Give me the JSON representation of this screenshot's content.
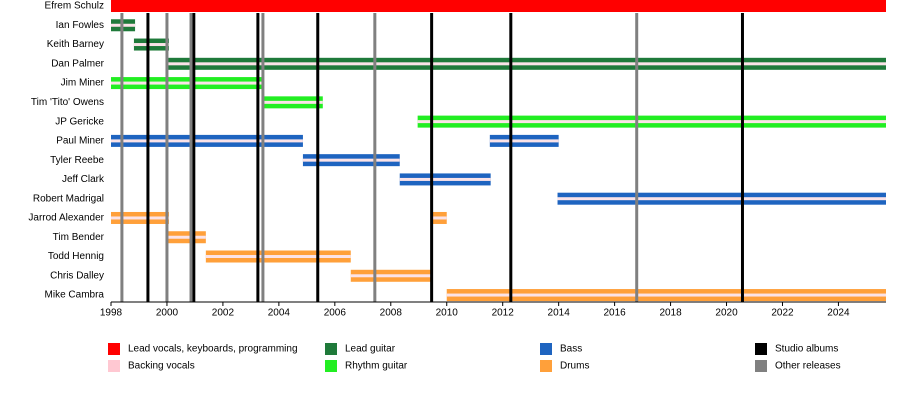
{
  "chart_data": {
    "type": "timeline",
    "xlim": [
      1998,
      2025.7
    ],
    "xticks": [
      1998,
      2000,
      2002,
      2004,
      2006,
      2008,
      2010,
      2012,
      2014,
      2016,
      2018,
      2020,
      2022,
      2024
    ],
    "stripe_color": "#fbe3e8",
    "roles": [
      {
        "name": "Lead vocals, keyboards, programming",
        "color": "#ff0000"
      },
      {
        "name": "Backing vocals",
        "color": "#ffc8d2"
      },
      {
        "name": "Lead guitar",
        "color": "#1f7a3a"
      },
      {
        "name": "Rhythm guitar",
        "color": "#22ee22"
      },
      {
        "name": "Bass",
        "color": "#1e64c0"
      },
      {
        "name": "Drums",
        "color": "#ffa03a"
      }
    ],
    "events": [
      {
        "name": "Studio albums",
        "color": "#000000",
        "dates": [
          1999.32,
          2000.96,
          2003.25,
          2005.39,
          2009.46,
          2012.29,
          2020.57
        ]
      },
      {
        "name": "Other releases",
        "color": "#808080",
        "dates": [
          1998.39,
          2000.0,
          2000.86,
          2003.43,
          2007.43,
          2016.79
        ]
      }
    ],
    "members": [
      {
        "name": "Efrem Schulz",
        "spans": [
          {
            "start": 1998,
            "end": 2025.7,
            "color": "#ff0000",
            "stripe": false
          }
        ]
      },
      {
        "name": "Ian Fowles",
        "spans": [
          {
            "start": 1998,
            "end": 1998.86,
            "color": "#1f7a3a",
            "stripe": true
          }
        ]
      },
      {
        "name": "Keith Barney",
        "spans": [
          {
            "start": 1998.82,
            "end": 2000.07,
            "color": "#1f7a3a",
            "stripe": true
          }
        ]
      },
      {
        "name": "Dan Palmer",
        "spans": [
          {
            "start": 2000.04,
            "end": 2025.7,
            "color": "#1f7a3a",
            "stripe": true
          }
        ]
      },
      {
        "name": "Jim Miner",
        "spans": [
          {
            "start": 1998,
            "end": 2003.39,
            "color": "#22ee22",
            "stripe": true
          }
        ]
      },
      {
        "name": "Tim 'Tito' Owens",
        "spans": [
          {
            "start": 2003.39,
            "end": 2005.57,
            "color": "#22ee22",
            "stripe": true
          }
        ]
      },
      {
        "name": "JP Gericke",
        "spans": [
          {
            "start": 2008.96,
            "end": 2025.7,
            "color": "#22ee22",
            "stripe": true
          }
        ]
      },
      {
        "name": "Paul Miner",
        "spans": [
          {
            "start": 1998,
            "end": 2004.86,
            "color": "#1e64c0",
            "stripe": true
          },
          {
            "start": 2011.54,
            "end": 2014.0,
            "color": "#1e64c0",
            "stripe": true
          }
        ]
      },
      {
        "name": "Tyler Reebe",
        "spans": [
          {
            "start": 2004.86,
            "end": 2008.32,
            "color": "#1e64c0",
            "stripe": true
          }
        ]
      },
      {
        "name": "Jeff Clark",
        "spans": [
          {
            "start": 2008.32,
            "end": 2011.57,
            "color": "#1e64c0",
            "stripe": true
          }
        ]
      },
      {
        "name": "Robert Madrigal",
        "spans": [
          {
            "start": 2013.96,
            "end": 2025.7,
            "color": "#1e64c0",
            "stripe": true
          }
        ]
      },
      {
        "name": "Jarrod Alexander",
        "spans": [
          {
            "start": 1998,
            "end": 2000.07,
            "color": "#ffa03a",
            "stripe": true
          },
          {
            "start": 2009.43,
            "end": 2010.0,
            "color": "#ffa03a",
            "stripe": true
          }
        ]
      },
      {
        "name": "Tim Bender",
        "spans": [
          {
            "start": 2000.04,
            "end": 2001.39,
            "color": "#ffa03a",
            "stripe": true
          }
        ]
      },
      {
        "name": "Todd Hennig",
        "spans": [
          {
            "start": 2001.39,
            "end": 2006.57,
            "color": "#ffa03a",
            "stripe": true
          }
        ]
      },
      {
        "name": "Chris Dalley",
        "spans": [
          {
            "start": 2006.57,
            "end": 2009.46,
            "color": "#ffa03a",
            "stripe": true
          }
        ]
      },
      {
        "name": "Mike Cambra",
        "spans": [
          {
            "start": 2010.0,
            "end": 2025.7,
            "color": "#ffa03a",
            "stripe": true
          }
        ]
      }
    ]
  }
}
